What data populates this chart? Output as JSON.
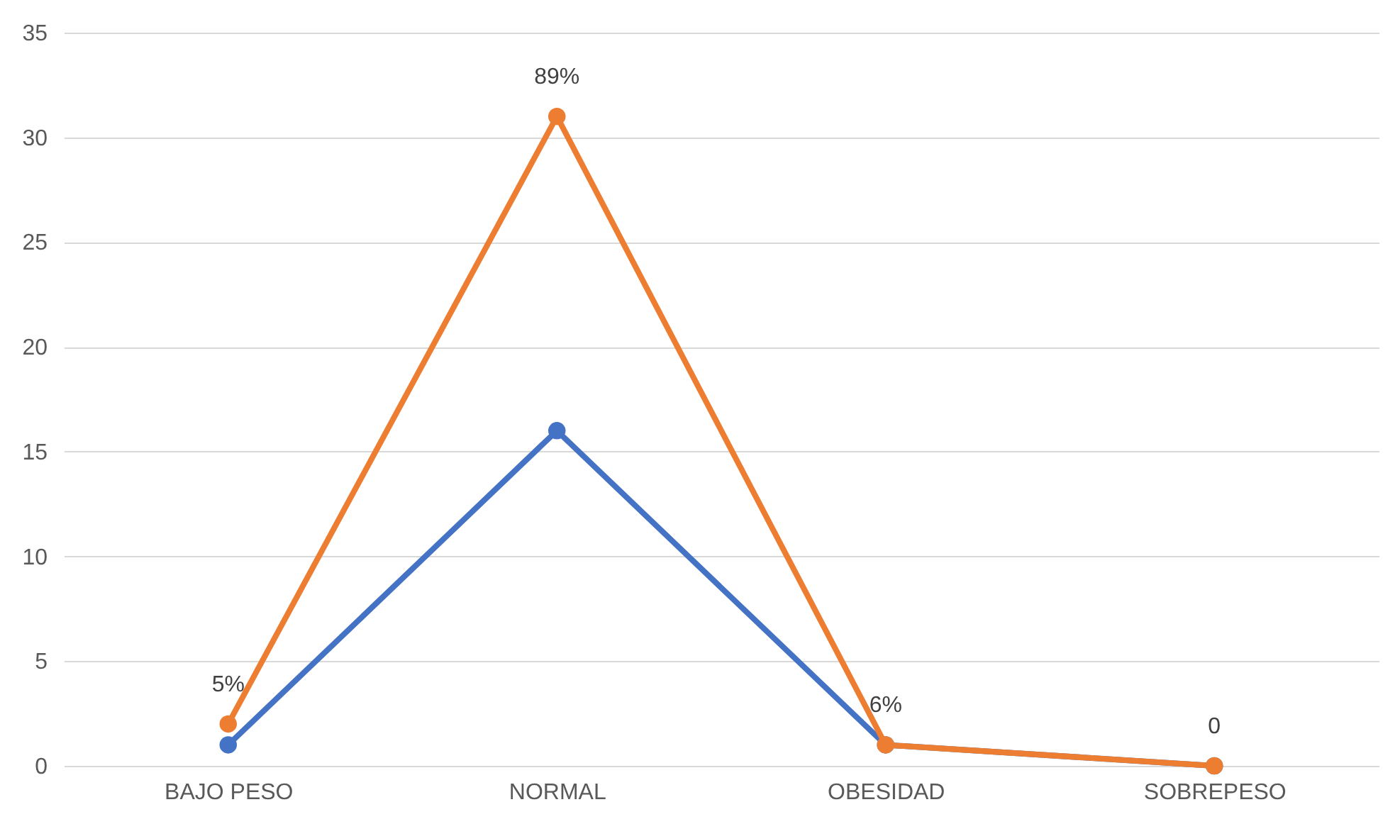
{
  "chart_data": {
    "type": "line",
    "categories": [
      "BAJO PESO",
      "NORMAL",
      "OBESIDAD",
      "SOBREPESO"
    ],
    "series": [
      {
        "color": "#4472c4",
        "values": [
          1,
          16,
          1,
          0
        ]
      },
      {
        "color": "#ed7d31",
        "values": [
          2,
          31,
          1,
          0
        ]
      }
    ],
    "annotations": [
      {
        "text": "5%",
        "x": "BAJO PESO",
        "y": 2
      },
      {
        "text": "89%",
        "x": "NORMAL",
        "y": 31
      },
      {
        "text": "6%",
        "x": "OBESIDAD",
        "y": 1
      },
      {
        "text": "0",
        "x": "SOBREPESO",
        "y": 0
      }
    ],
    "ylim": [
      0,
      35
    ],
    "yticks": [
      0,
      5,
      10,
      15,
      20,
      25,
      30,
      35
    ],
    "grid": "y",
    "marker": "circle",
    "line_style": "solid"
  }
}
